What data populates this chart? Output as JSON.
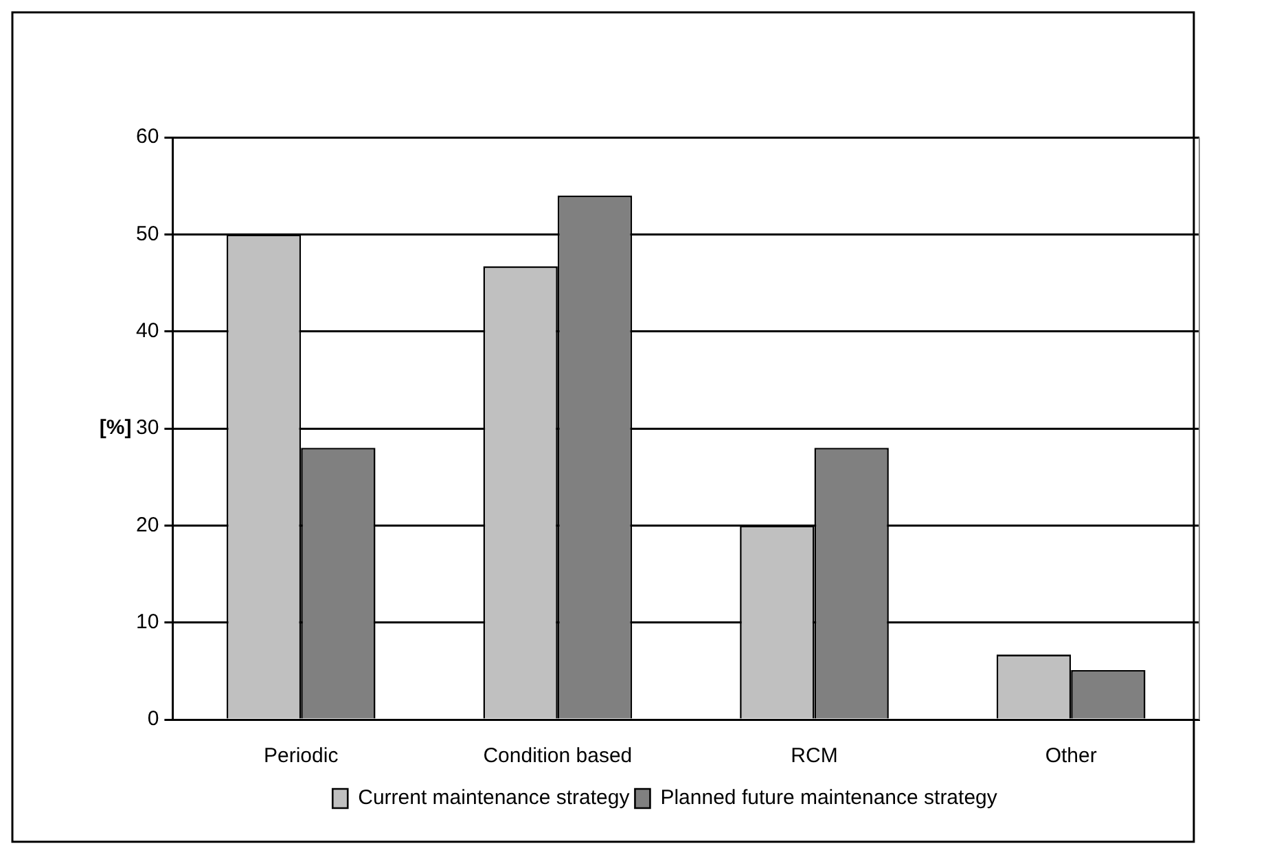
{
  "chart_data": {
    "type": "bar",
    "ylabel": "[%]",
    "categories": [
      "Periodic",
      "Condition based",
      "RCM",
      "Other"
    ],
    "series": [
      {
        "name": "Current maintenance strategy",
        "color": "#c0c0c0",
        "values": [
          50,
          46.7,
          20,
          6.7
        ]
      },
      {
        "name": "Planned future maintenance strategy",
        "color": "#808080",
        "values": [
          28,
          54,
          28,
          5.1
        ]
      }
    ],
    "ylim": [
      0,
      60
    ],
    "yticks": [
      0,
      10,
      20,
      30,
      40,
      50,
      60
    ],
    "grid": "y",
    "legend": "bottom"
  }
}
